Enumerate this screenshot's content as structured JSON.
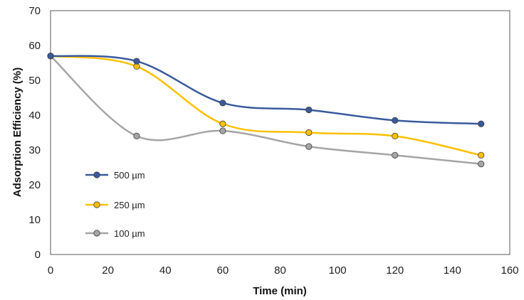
{
  "chart_data": {
    "type": "line",
    "title": "",
    "xlabel": "Time (min)",
    "ylabel": "Adsorption Efficiency (%)",
    "xlim": [
      0,
      160
    ],
    "ylim": [
      0,
      70
    ],
    "xticks": [
      0,
      20,
      40,
      60,
      80,
      100,
      120,
      140,
      160
    ],
    "yticks": [
      0,
      10,
      20,
      30,
      40,
      50,
      60,
      70
    ],
    "grid": false,
    "smooth": true,
    "legend_position": "left-center",
    "series": [
      {
        "name": "500 µm",
        "color": "#3A5A9C",
        "x": [
          0,
          30,
          60,
          90,
          120,
          150
        ],
        "y": [
          57,
          55.5,
          43.5,
          41.5,
          38.5,
          37.5
        ]
      },
      {
        "name": "250 µm",
        "color": "#FFC000",
        "x": [
          0,
          30,
          60,
          90,
          120,
          150
        ],
        "y": [
          57,
          54,
          37.5,
          35,
          34,
          28.5
        ]
      },
      {
        "name": "100 µm",
        "color": "#A5A5A5",
        "x": [
          0,
          30,
          60,
          90,
          120,
          150
        ],
        "y": [
          57,
          34,
          35.5,
          31,
          28.5,
          26
        ]
      }
    ]
  }
}
